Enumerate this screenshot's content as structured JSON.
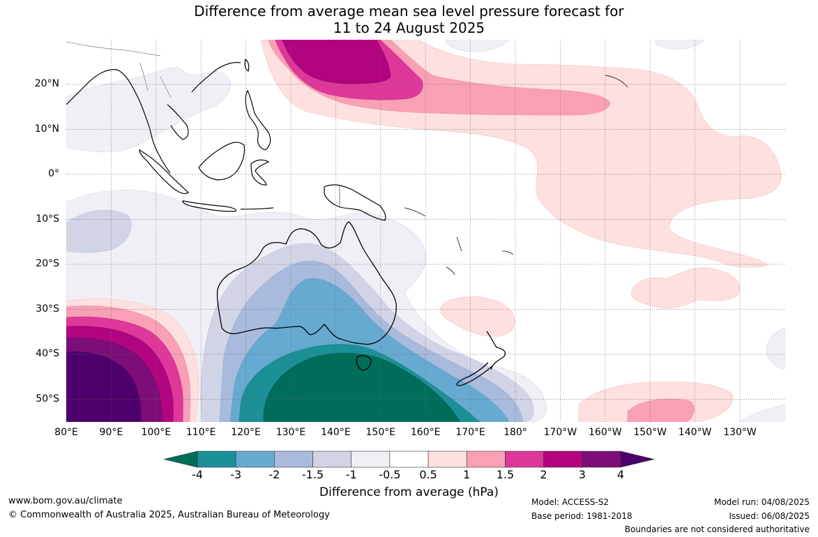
{
  "title": {
    "line1": "Difference from average mean sea level pressure forecast for",
    "line2": "11 to 24 August 2025"
  },
  "map": {
    "lat_labels": [
      "20°N",
      "10°N",
      "0°",
      "10°S",
      "20°S",
      "30°S",
      "40°S",
      "50°S"
    ],
    "lon_labels": [
      "80°E",
      "90°E",
      "100°E",
      "110°E",
      "120°E",
      "130°E",
      "140°E",
      "150°E",
      "160°E",
      "170°E",
      "180°",
      "170°W",
      "160°W",
      "150°W",
      "140°W",
      "130°W"
    ],
    "lat_range": [
      "55°S",
      "30°N"
    ],
    "lon_range": [
      "80°E",
      "120°W"
    ],
    "gridlines": "dotted",
    "units": "hPa"
  },
  "colorbar": {
    "title": "Difference from average (hPa)",
    "tick_labels": [
      "-4",
      "-3",
      "-2",
      "-1.5",
      "-1",
      "-0.5",
      "0.5",
      "1",
      "1.5",
      "2",
      "3",
      "4"
    ],
    "colors": [
      "#006d5b",
      "#1b9097",
      "#67aad1",
      "#a8bbdc",
      "#d1d4e6",
      "#f1eff6",
      "#ffffff",
      "#fde0df",
      "#f9a0b7",
      "#de389a",
      "#b2047f",
      "#7d0d78",
      "#4d006b"
    ]
  },
  "footer": {
    "url": "www.bom.gov.au/climate",
    "copyright": "© Commonwealth of Australia 2025, Australian Bureau of Meteorology",
    "model": "Model: ACCESS-S2",
    "base_period": "Base period: 1981-2018",
    "model_run": "Model run: 04/08/2025",
    "issued": "Issued: 06/08/2025",
    "disclaimer": "Boundaries are not considered authoritative"
  }
}
